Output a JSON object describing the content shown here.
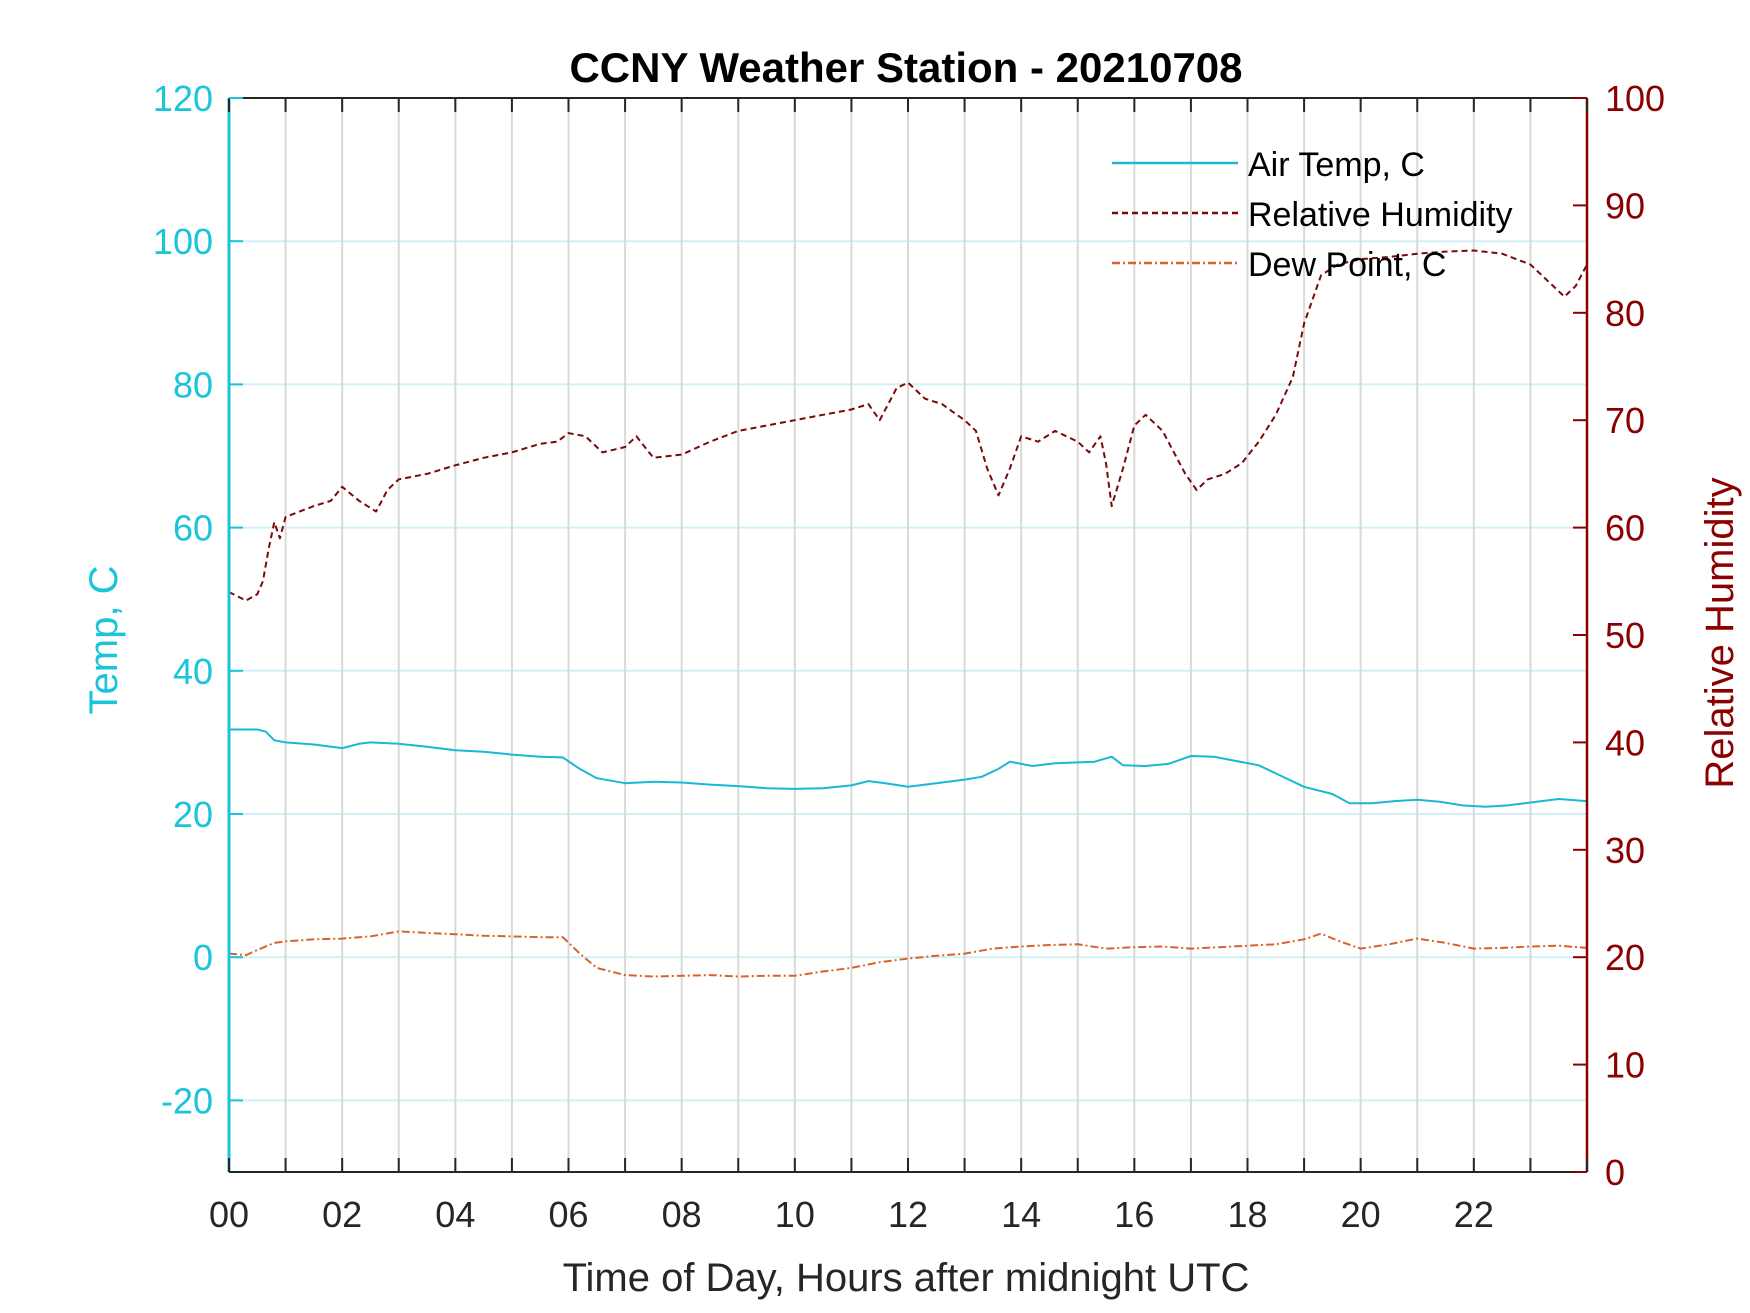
{
  "chart_data": {
    "type": "line",
    "title": "CCNY Weather Station - 20210708",
    "xlabel": "Time of Day, Hours after midnight UTC",
    "ylabel_left": "Temp, C",
    "ylabel_right": "Relative Humidity",
    "xlim": [
      0,
      24
    ],
    "ylim_left": [
      -30,
      120
    ],
    "ylim_right": [
      0,
      100
    ],
    "x_ticks": [
      0,
      2,
      4,
      6,
      8,
      10,
      12,
      14,
      16,
      18,
      20,
      22
    ],
    "x_tick_labels": [
      "00",
      "02",
      "04",
      "06",
      "08",
      "10",
      "12",
      "14",
      "16",
      "18",
      "20",
      "22"
    ],
    "x_grid": [
      1,
      2,
      3,
      4,
      5,
      6,
      7,
      8,
      9,
      10,
      11,
      12,
      13,
      14,
      15,
      16,
      17,
      18,
      19,
      20,
      21,
      22,
      23
    ],
    "y_left_ticks": [
      -20,
      0,
      20,
      40,
      60,
      80,
      100,
      120
    ],
    "y_left_tick_labels": [
      "-20",
      "0",
      "20",
      "40",
      "60",
      "80",
      "100",
      "120"
    ],
    "y_right_ticks": [
      0,
      10,
      20,
      30,
      40,
      50,
      60,
      70,
      80,
      90,
      100
    ],
    "y_right_tick_labels": [
      "0",
      "10",
      "20",
      "30",
      "40",
      "50",
      "60",
      "70",
      "80",
      "90",
      "100"
    ],
    "colors": {
      "left_axis": "#1ac4d9",
      "right_axis": "#8b0000",
      "air_temp": "#1ab8d4",
      "humidity": "#7a0a0a",
      "dew_point": "#d9622b",
      "grid_v": "#d9d9d9",
      "grid_h": "#d2f0f6"
    },
    "legend_position": "top-right",
    "series": [
      {
        "name": "Air Temp, C",
        "axis": "left",
        "style": "solid",
        "x": [
          0,
          0.5,
          0.65,
          0.8,
          1.0,
          1.5,
          2.0,
          2.3,
          2.5,
          3.0,
          3.5,
          4.0,
          4.5,
          5.0,
          5.5,
          5.9,
          6.2,
          6.5,
          7.0,
          7.5,
          8.0,
          8.5,
          9.0,
          9.5,
          10.0,
          10.5,
          11.0,
          11.3,
          11.6,
          12.0,
          12.5,
          13.0,
          13.3,
          13.6,
          13.8,
          14.2,
          14.6,
          15.0,
          15.3,
          15.6,
          15.8,
          16.2,
          16.6,
          17.0,
          17.4,
          17.8,
          18.2,
          18.6,
          19.0,
          19.5,
          19.8,
          20.2,
          20.6,
          21.0,
          21.4,
          21.8,
          22.2,
          22.6,
          23.0,
          23.5,
          24.0
        ],
        "y": [
          31.8,
          31.8,
          31.5,
          30.3,
          30.0,
          29.7,
          29.2,
          29.8,
          30.0,
          29.8,
          29.4,
          28.9,
          28.7,
          28.3,
          28.0,
          27.9,
          26.3,
          25.0,
          24.3,
          24.5,
          24.4,
          24.1,
          23.9,
          23.6,
          23.5,
          23.6,
          24.0,
          24.6,
          24.3,
          23.8,
          24.3,
          24.8,
          25.2,
          26.3,
          27.3,
          26.7,
          27.1,
          27.2,
          27.3,
          28.0,
          26.8,
          26.7,
          27.0,
          28.1,
          28.0,
          27.4,
          26.8,
          25.3,
          23.8,
          22.8,
          21.5,
          21.5,
          21.8,
          22.0,
          21.7,
          21.2,
          21.0,
          21.2,
          21.6,
          22.1,
          21.8
        ]
      },
      {
        "name": "Relative Humidity",
        "axis": "right",
        "style": "dashed",
        "x": [
          0,
          0.3,
          0.5,
          0.6,
          0.7,
          0.8,
          0.9,
          1.0,
          1.5,
          1.8,
          2.0,
          2.3,
          2.6,
          2.8,
          3.0,
          3.5,
          4.0,
          4.5,
          5.0,
          5.5,
          5.8,
          6.0,
          6.3,
          6.6,
          7.0,
          7.2,
          7.5,
          8.0,
          8.5,
          9.0,
          9.5,
          10.0,
          10.5,
          11.0,
          11.3,
          11.5,
          11.8,
          12.0,
          12.3,
          12.6,
          13.0,
          13.2,
          13.4,
          13.6,
          13.8,
          14.0,
          14.3,
          14.6,
          15.0,
          15.2,
          15.4,
          15.5,
          15.6,
          15.8,
          16.0,
          16.2,
          16.5,
          16.7,
          16.9,
          17.1,
          17.3,
          17.6,
          17.9,
          18.2,
          18.5,
          18.8,
          19.0,
          19.3,
          19.6,
          20.0,
          20.5,
          21.0,
          21.5,
          22.0,
          22.5,
          23.0,
          23.3,
          23.6,
          23.8,
          24.0
        ],
        "y": [
          54.0,
          53.2,
          53.8,
          55.0,
          58.0,
          60.5,
          59.0,
          61.0,
          62.0,
          62.5,
          63.8,
          62.5,
          61.5,
          63.5,
          64.5,
          65.0,
          65.8,
          66.5,
          67.0,
          67.8,
          68.0,
          68.8,
          68.5,
          67.0,
          67.5,
          68.5,
          66.5,
          66.8,
          68.0,
          69.0,
          69.5,
          70.0,
          70.5,
          71.0,
          71.5,
          70.0,
          73.0,
          73.5,
          72.0,
          71.5,
          70.0,
          69.0,
          65.5,
          63.0,
          65.5,
          68.5,
          68.0,
          69.0,
          68.0,
          67.0,
          68.5,
          66.0,
          62.0,
          65.5,
          69.5,
          70.5,
          69.0,
          67.0,
          65.0,
          63.5,
          64.5,
          65.0,
          66.0,
          68.0,
          70.5,
          74.0,
          79.0,
          83.5,
          84.5,
          85.0,
          85.2,
          85.5,
          85.7,
          85.8,
          85.5,
          84.5,
          83.0,
          81.5,
          82.5,
          84.5
        ]
      },
      {
        "name": "Dew Point, C",
        "axis": "left",
        "style": "dashdot",
        "x": [
          0,
          0.3,
          0.5,
          0.8,
          1.0,
          1.5,
          2.0,
          2.5,
          3.0,
          3.5,
          4.0,
          4.5,
          5.0,
          5.5,
          5.9,
          6.2,
          6.5,
          7.0,
          7.5,
          8.0,
          8.5,
          9.0,
          9.5,
          10.0,
          10.5,
          11.0,
          11.5,
          12.0,
          12.5,
          13.0,
          13.5,
          14.0,
          14.5,
          15.0,
          15.5,
          16.0,
          16.5,
          17.0,
          17.5,
          18.0,
          18.5,
          19.0,
          19.3,
          19.6,
          20.0,
          20.5,
          21.0,
          21.5,
          22.0,
          22.5,
          23.0,
          23.5,
          24.0
        ],
        "y": [
          0.5,
          0.3,
          1.0,
          2.0,
          2.2,
          2.5,
          2.6,
          2.9,
          3.6,
          3.4,
          3.2,
          3.0,
          2.9,
          2.8,
          2.8,
          0.5,
          -1.5,
          -2.5,
          -2.7,
          -2.6,
          -2.5,
          -2.7,
          -2.6,
          -2.6,
          -2.0,
          -1.5,
          -0.7,
          -0.2,
          0.2,
          0.5,
          1.2,
          1.5,
          1.7,
          1.8,
          1.2,
          1.4,
          1.5,
          1.2,
          1.4,
          1.6,
          1.8,
          2.5,
          3.3,
          2.3,
          1.2,
          1.8,
          2.6,
          2.0,
          1.2,
          1.3,
          1.5,
          1.6,
          1.3
        ]
      }
    ]
  }
}
